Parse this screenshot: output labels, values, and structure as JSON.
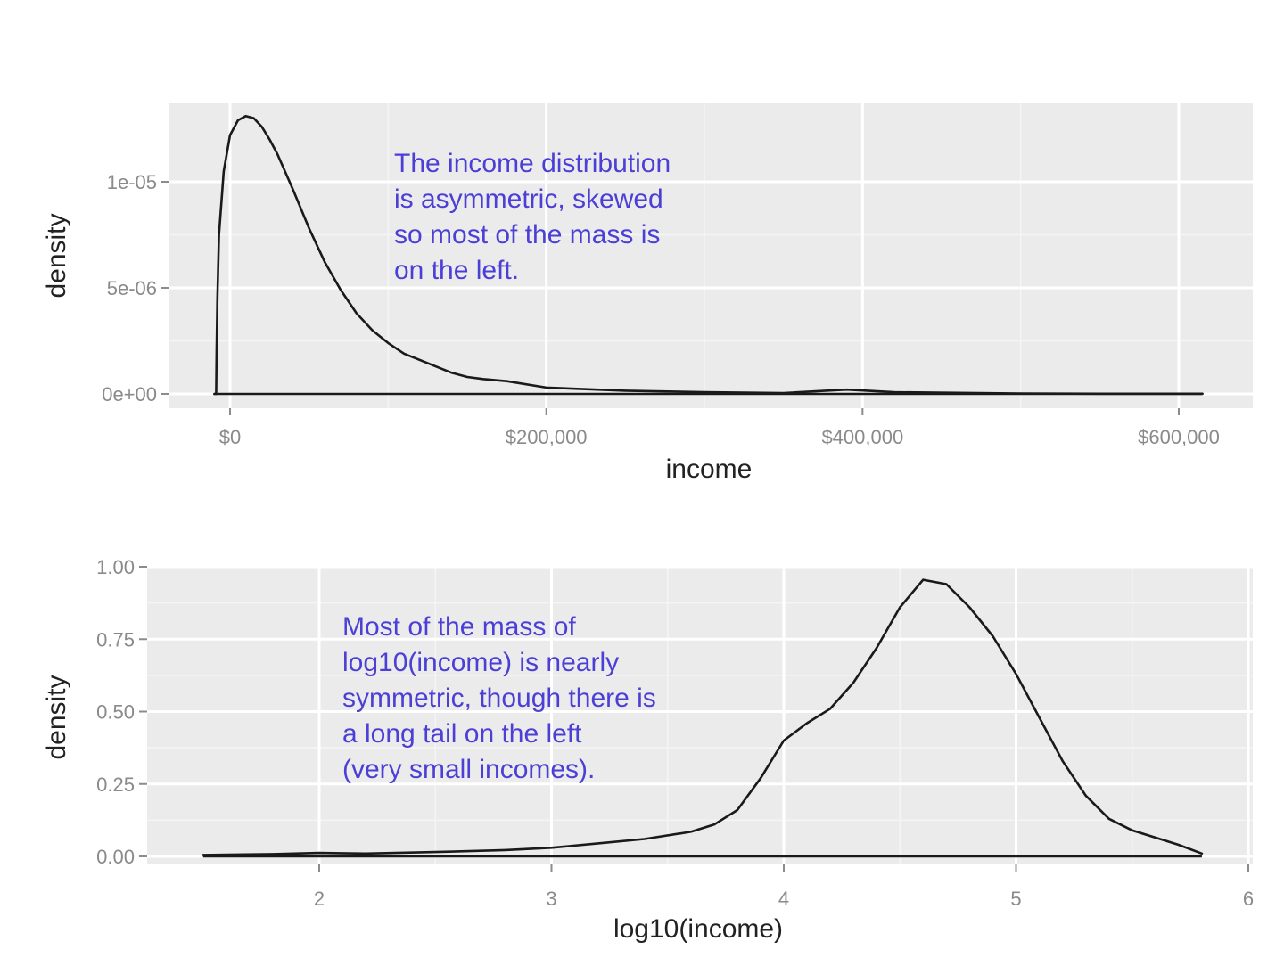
{
  "chart_data": [
    {
      "type": "line",
      "xlabel": "income",
      "ylabel": "density",
      "xlim": [
        -5000,
        625000
      ],
      "ylim": [
        -700000000,
        1.32e-05
      ],
      "x_ticks": [
        {
          "value": 0,
          "label": "$0"
        },
        {
          "value": 200000,
          "label": "$200,000"
        },
        {
          "value": 400000,
          "label": "$400,000"
        },
        {
          "value": 600000,
          "label": "$600,000"
        }
      ],
      "y_ticks": [
        {
          "value": 0,
          "label": "0e+00"
        },
        {
          "value": 5e-06,
          "label": "5e-06"
        },
        {
          "value": 1e-05,
          "label": "1e-05"
        }
      ],
      "grid": true,
      "annotation": [
        "The income distribution",
        "is asymmetric, skewed",
        "so most of the mass is",
        "on the left."
      ],
      "series": [
        {
          "x": [
            -10000,
            -8800,
            -8500,
            -8000,
            -7000,
            -4000,
            0,
            5000,
            10000,
            15000,
            20000,
            25000,
            30000,
            40000,
            50000,
            60000,
            70000,
            80000,
            90000,
            100000,
            110000,
            120000,
            130000,
            140000,
            150000,
            160000,
            175000,
            200000,
            250000,
            300000,
            350000,
            390000,
            420000,
            500000,
            550000,
            600000,
            615000
          ],
          "y": [
            0,
            0,
            2e-06,
            4.5e-06,
            7.5e-06,
            1.05e-05,
            1.22e-05,
            1.29e-05,
            1.31e-05,
            1.3e-05,
            1.26e-05,
            1.2e-05,
            1.13e-05,
            9.6e-06,
            7.8e-06,
            6.2e-06,
            4.9e-06,
            3.8e-06,
            3e-06,
            2.4e-06,
            1.9e-06,
            1.6e-06,
            1.3e-06,
            1e-06,
            8e-07,
            7e-07,
            6e-07,
            3e-07,
            1.5e-07,
            8e-08,
            4e-08,
            2e-07,
            8e-08,
            2e-08,
            1e-08,
            1e-08,
            1e-08
          ]
        }
      ]
    },
    {
      "type": "line",
      "xlabel": "log10(income)",
      "ylabel": "density",
      "xlim": [
        1.25,
        6.0
      ],
      "ylim": [
        -0.02,
        1.0
      ],
      "x_ticks": [
        {
          "value": 2,
          "label": "2"
        },
        {
          "value": 3,
          "label": "3"
        },
        {
          "value": 4,
          "label": "4"
        },
        {
          "value": 5,
          "label": "5"
        },
        {
          "value": 6,
          "label": "6"
        }
      ],
      "y_ticks": [
        {
          "value": 0,
          "label": "0.00"
        },
        {
          "value": 0.25,
          "label": "0.25"
        },
        {
          "value": 0.5,
          "label": "0.50"
        },
        {
          "value": 0.75,
          "label": "0.75"
        },
        {
          "value": 1.0,
          "label": "1.00"
        }
      ],
      "grid": true,
      "annotation": [
        "Most of the mass of",
        "log10(income) is nearly",
        "symmetric, though there is",
        "a long tail on the left",
        "(very small incomes)."
      ],
      "series": [
        {
          "x": [
            1.5,
            1.8,
            2.0,
            2.2,
            2.5,
            2.8,
            3.0,
            3.2,
            3.4,
            3.6,
            3.7,
            3.8,
            3.9,
            4.0,
            4.1,
            4.2,
            4.3,
            4.4,
            4.5,
            4.6,
            4.7,
            4.8,
            4.9,
            5.0,
            5.1,
            5.2,
            5.3,
            5.4,
            5.5,
            5.6,
            5.7,
            5.8
          ],
          "y": [
            0.005,
            0.008,
            0.012,
            0.01,
            0.015,
            0.022,
            0.03,
            0.045,
            0.06,
            0.085,
            0.11,
            0.16,
            0.27,
            0.4,
            0.46,
            0.51,
            0.6,
            0.72,
            0.86,
            0.955,
            0.94,
            0.86,
            0.76,
            0.63,
            0.48,
            0.33,
            0.21,
            0.13,
            0.09,
            0.065,
            0.04,
            0.01
          ]
        }
      ]
    }
  ]
}
